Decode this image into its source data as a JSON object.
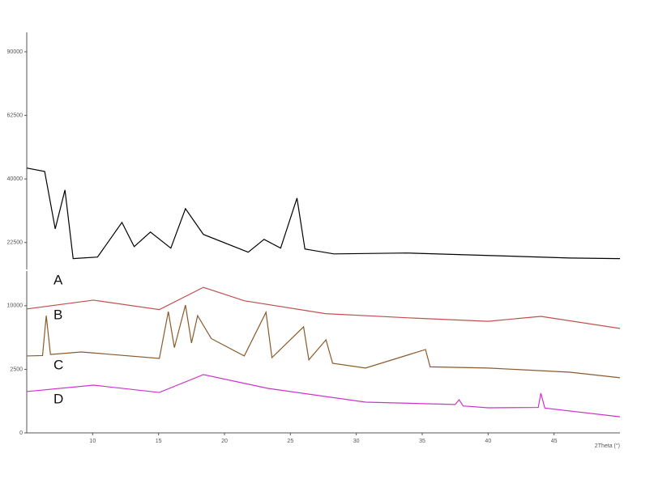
{
  "chart_data": [
    {
      "type": "line",
      "yscale": "sqrt",
      "xlim": [
        5,
        50
      ],
      "ylim": [
        16600,
        99400
      ],
      "yticks": [
        22500,
        40000,
        62500,
        90000
      ],
      "series": [
        {
          "color": "#000000",
          "x": [
            5,
            6.36,
            7.16,
            7.9,
            8.52,
            10.37,
            12.22,
            13.15,
            14.38,
            15.93,
            17.04,
            18.4,
            21.8,
            23.0,
            24.26,
            25.5,
            26.1,
            28.3,
            33.8,
            40,
            46.2,
            50
          ],
          "values": [
            43500,
            42400,
            25850,
            36600,
            18860,
            19200,
            27500,
            21550,
            25050,
            21200,
            31200,
            24450,
            20270,
            23260,
            21200,
            34200,
            21000,
            19900,
            20100,
            19550,
            19000,
            18860
          ]
        }
      ]
    },
    {
      "type": "line",
      "yscale": "sqrt",
      "xlim": [
        5,
        50
      ],
      "ylim": [
        0,
        16200
      ],
      "yticks": [
        0,
        2500,
        10000
      ],
      "xticks": [
        10,
        15,
        20,
        25,
        30,
        35,
        40,
        45
      ],
      "x_label": "2Theta (°)",
      "annotations": [
        "A",
        "B",
        "C",
        "D"
      ],
      "series": [
        {
          "color": "#c0504d",
          "x": [
            5,
            10.06,
            15.06,
            18.4,
            21.5,
            27.65,
            33.8,
            40,
            44,
            50
          ],
          "values": [
            9500,
            10900,
            9400,
            13100,
            10800,
            8800,
            8200,
            7700,
            8400,
            6750
          ]
        },
        {
          "color": "#8b5a2b",
          "x": [
            5,
            6.2,
            6.48,
            6.8,
            9.14,
            15.06,
            15.74,
            16.2,
            17.04,
            17.5,
            17.96,
            19,
            21.5,
            23.15,
            23.6,
            26,
            26.4,
            27.7,
            28.2,
            30.7,
            35.25,
            35.6,
            40,
            46.2,
            50
          ],
          "values": [
            3660,
            3700,
            8500,
            3800,
            4050,
            3430,
            9100,
            4500,
            10100,
            5000,
            8500,
            5500,
            3660,
            9000,
            3500,
            6960,
            3300,
            5360,
            3000,
            2600,
            4300,
            2700,
            2600,
            2280,
            1880
          ]
        },
        {
          "color": "#cc33cc",
          "x": [
            5,
            10.06,
            15.06,
            18.4,
            23.3,
            30.7,
            37.5,
            37.8,
            38.1,
            40,
            43.8,
            44,
            44.3,
            50
          ],
          "values": [
            1055,
            1410,
            1010,
            2100,
            1225,
            585,
            500,
            680,
            450,
            390,
            400,
            975,
            380,
            160
          ]
        }
      ]
    }
  ]
}
